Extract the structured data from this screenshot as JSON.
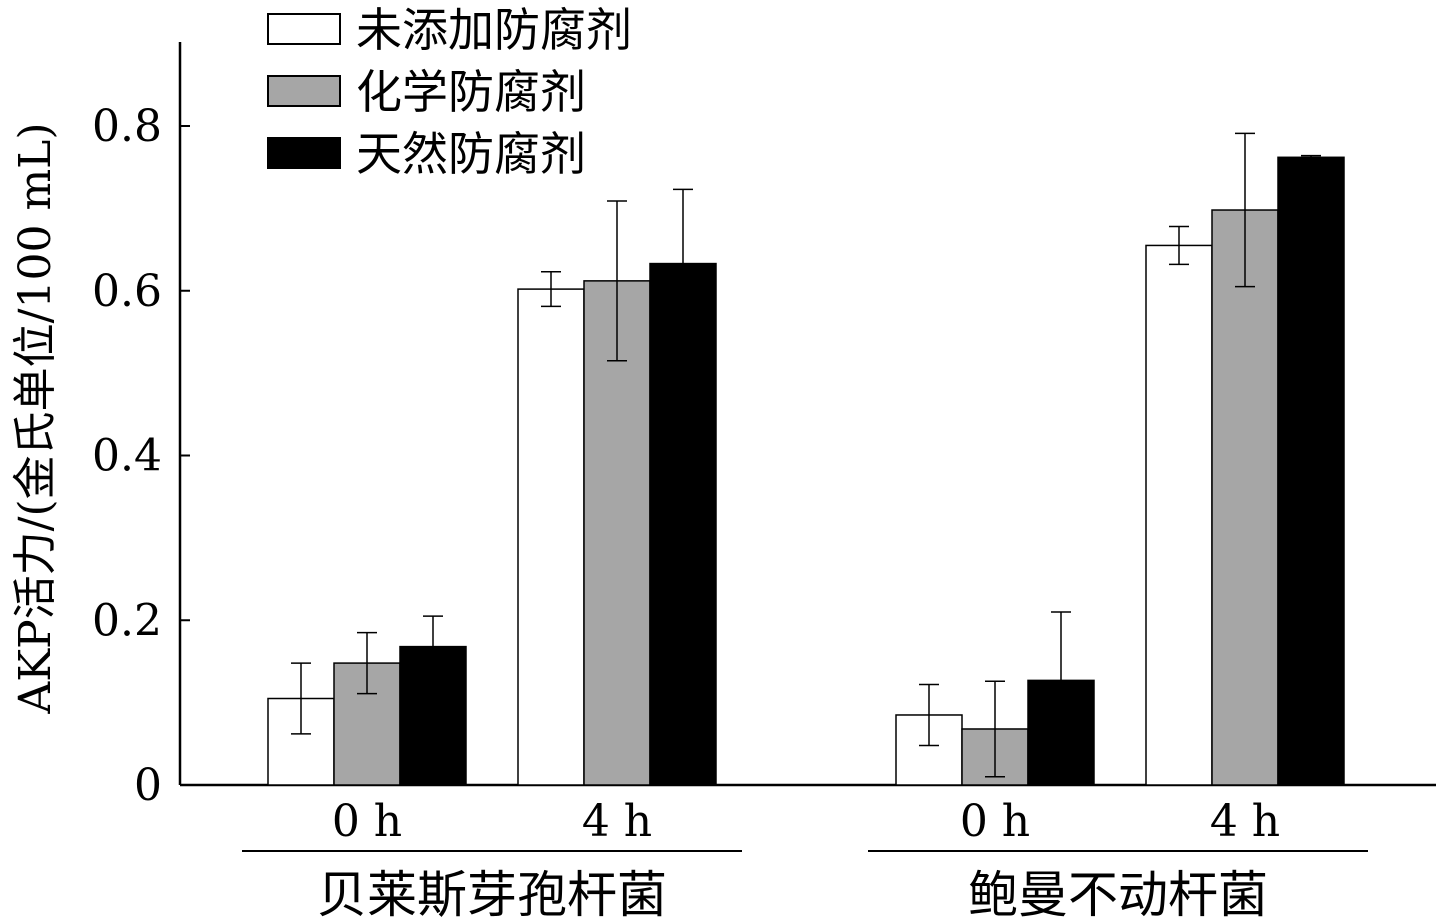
{
  "chart_data": {
    "type": "bar",
    "ylabel": "AKP活力/(金氏单位/100 mL)",
    "ylim": [
      0,
      0.9
    ],
    "yticks": [
      "0",
      "0.2",
      "0.4",
      "0.6",
      "0.8"
    ],
    "grid": false,
    "legend_position": "top-left",
    "groups": [
      {
        "label": "贝莱斯芽孢杆菌",
        "categories": [
          "0 h",
          "4 h"
        ]
      },
      {
        "label": "鲍曼不动杆菌",
        "categories": [
          "0 h",
          "4 h"
        ]
      }
    ],
    "series": [
      {
        "name": "未添加防腐剂",
        "color": "#ffffff",
        "values": [
          0.105,
          0.602,
          0.085,
          0.655
        ],
        "errors": [
          0.043,
          0.021,
          0.037,
          0.023
        ]
      },
      {
        "name": "化学防腐剂",
        "color": "#a6a6a6",
        "values": [
          0.148,
          0.612,
          0.068,
          0.698
        ],
        "errors": [
          0.037,
          0.097,
          0.058,
          0.093
        ]
      },
      {
        "name": "天然防腐剂",
        "color": "#000000",
        "values": [
          0.168,
          0.633,
          0.127,
          0.762
        ],
        "errors": [
          0.037,
          0.09,
          0.083,
          0.002
        ]
      }
    ]
  }
}
